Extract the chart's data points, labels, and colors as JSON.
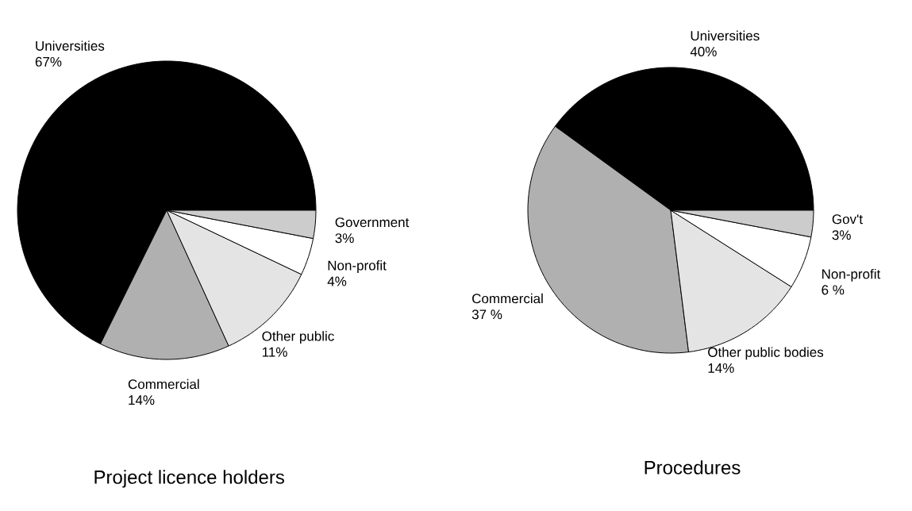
{
  "chart_data": [
    {
      "type": "pie",
      "title": "Project licence holders",
      "categories": [
        "Universities",
        "Commercial",
        "Other public",
        "Non-profit",
        "Government"
      ],
      "values": [
        67,
        14,
        11,
        4,
        3
      ],
      "value_labels": [
        "67%",
        "14%",
        "11%",
        "4%",
        "3%"
      ],
      "colors": [
        "#000000",
        "#b0b0b0",
        "#e4e4e4",
        "#ffffff",
        "#cccccc"
      ]
    },
    {
      "type": "pie",
      "title": "Procedures",
      "categories": [
        "Universities",
        "Commercial",
        "Other public bodies",
        "Non-profit",
        "Gov't"
      ],
      "values": [
        40,
        37,
        14,
        6,
        3
      ],
      "value_labels": [
        "40%",
        "37 %",
        "14%",
        "6 %",
        "3%"
      ],
      "colors": [
        "#000000",
        "#b0b0b0",
        "#e4e4e4",
        "#ffffff",
        "#cccccc"
      ]
    }
  ]
}
